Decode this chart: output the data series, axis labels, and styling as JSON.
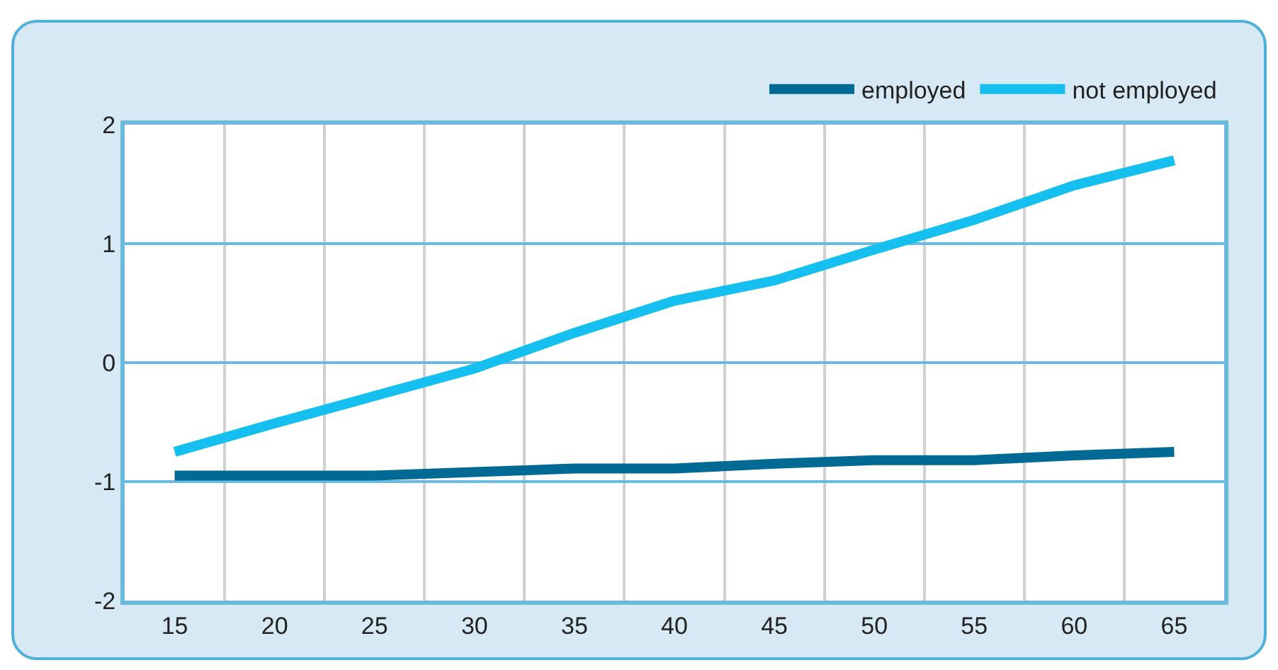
{
  "chart_data": {
    "type": "line",
    "categories": [
      "15",
      "20",
      "25",
      "30",
      "35",
      "40",
      "45",
      "50",
      "55",
      "60",
      "65"
    ],
    "series": [
      {
        "name": "employed",
        "color": "#006a94",
        "values": [
          -0.95,
          -0.95,
          -0.95,
          -0.92,
          -0.89,
          -0.89,
          -0.85,
          -0.82,
          -0.82,
          -0.78,
          -0.75
        ]
      },
      {
        "name": "not employed",
        "color": "#15c0f0",
        "values": [
          -0.75,
          -0.51,
          -0.28,
          -0.05,
          0.25,
          0.52,
          0.69,
          0.95,
          1.2,
          1.49,
          1.7
        ]
      }
    ],
    "ylim": [
      -2,
      2
    ],
    "yticks": [
      -2,
      -1,
      0,
      1,
      2
    ],
    "grid": true,
    "legend": "top right",
    "marker": "none",
    "line_style": "solid"
  }
}
